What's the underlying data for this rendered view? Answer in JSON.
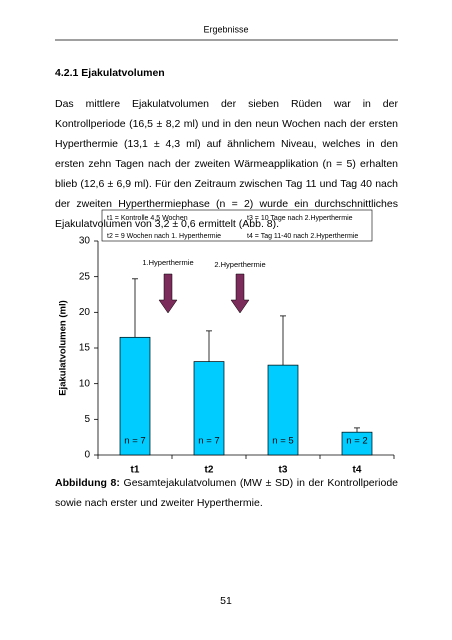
{
  "header": {
    "title": "Ergebnisse"
  },
  "section": {
    "heading": "4.2.1 Ejakulatvolumen"
  },
  "paragraph": {
    "text": "Das mittlere Ejakulatvolumen der sieben Rüden war in der Kontrollperiode (16,5 ± 8,2 ml) und in den neun Wochen nach der ersten Hyperthermie (13,1 ± 4,3 ml) auf ähnlichem Niveau, welches in den ersten zehn Tagen nach der zweiten Wärmeapplikation (n = 5) erhalten blieb (12,6 ± 6,9 ml). Für den Zeitraum zwischen Tag 11 und Tag 40 nach der zweiten Hyperthermiephase (n = 2) wurde ein durchschnittliches Ejakulatvolumen von 3,2 ± 0,6 ermittelt (Abb. 8)."
  },
  "chart_data": {
    "type": "bar",
    "y_label": "Ejakulatvolumen (ml)",
    "categories": [
      "t1",
      "t2",
      "t3",
      "t4"
    ],
    "values": [
      16.5,
      13.1,
      12.6,
      3.2
    ],
    "errors": [
      8.2,
      4.3,
      6.9,
      0.6
    ],
    "n_labels": [
      "n = 7",
      "n = 7",
      "n = 5",
      "n = 2"
    ],
    "color": "#00ccff",
    "legend_notes": [
      "t1 = Kontrolle 4,5 Wochen",
      "t2 = 9 Wochen nach 1. Hyperthermie",
      "t3 = 10 Tage nach 2.Hyperthermie",
      "t4 = Tag 11-40 nach 2.Hyperthermie"
    ],
    "annotations": [
      "1.Hyperthermie",
      "2.Hyperthermie"
    ],
    "arrow_color": "#7b2c5a",
    "ylim": [
      0,
      30
    ],
    "yticks": [
      0,
      5,
      10,
      15,
      20,
      25,
      30
    ]
  },
  "caption": {
    "label": "Abbildung 8:",
    "text": " Gesamtejakulatvolumen (MW ± SD) in der Kontrollperiode sowie nach erster und zweiter Hyperthermie."
  },
  "footer": {
    "page": "51"
  }
}
